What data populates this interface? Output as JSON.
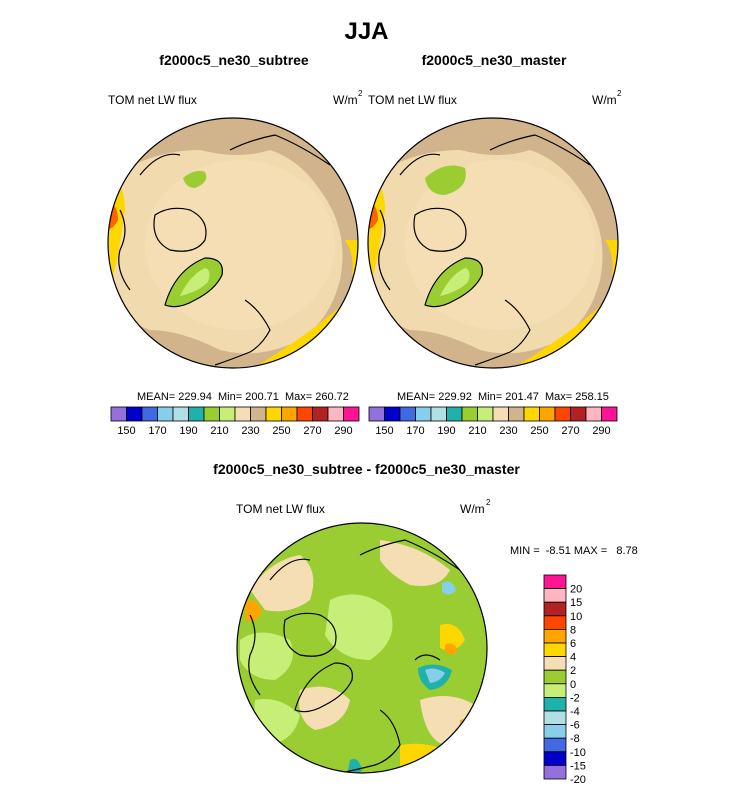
{
  "figure": {
    "season": "JJA",
    "variable": "TOM net LW flux",
    "units_base": "W/m",
    "units_exp": "2"
  },
  "chart_data": [
    {
      "type": "heatmap",
      "projection": "north polar stereographic",
      "title": "f2000c5_ne30_subtree",
      "left_label": "TOM net LW flux",
      "right_label": "W/m2",
      "stats": {
        "mean": 229.94,
        "min": 200.71,
        "max": 260.72
      },
      "stats_text": "MEAN= 229.94  Min= 200.71  Max= 260.72",
      "colorbar": {
        "levels": [
          150,
          160,
          170,
          180,
          190,
          200,
          210,
          220,
          230,
          240,
          250,
          260,
          270,
          280,
          290
        ],
        "labels": [
          "150",
          "170",
          "190",
          "210",
          "230",
          "250",
          "270",
          "290"
        ]
      }
    },
    {
      "type": "heatmap",
      "projection": "north polar stereographic",
      "title": "f2000c5_ne30_master",
      "left_label": "TOM net LW flux",
      "right_label": "W/m2",
      "stats": {
        "mean": 229.92,
        "min": 201.47,
        "max": 258.15
      },
      "stats_text": "MEAN= 229.92  Min= 201.47  Max= 258.15",
      "colorbar": {
        "levels": [
          150,
          160,
          170,
          180,
          190,
          200,
          210,
          220,
          230,
          240,
          250,
          260,
          270,
          280,
          290
        ],
        "labels": [
          "150",
          "170",
          "190",
          "210",
          "230",
          "250",
          "270",
          "290"
        ]
      }
    },
    {
      "type": "heatmap",
      "projection": "north polar stereographic",
      "title": "f2000c5_ne30_subtree - f2000c5_ne30_master",
      "left_label": "TOM net LW flux",
      "right_label": "W/m2",
      "stats": {
        "min": -8.51,
        "max": 8.78
      },
      "stats_text": "MIN =  -8.51 MAX =   8.78",
      "colorbar": {
        "levels": [
          -20,
          -15,
          -10,
          -8,
          -6,
          -4,
          -2,
          0,
          2,
          4,
          6,
          8,
          10,
          15,
          20
        ],
        "labels": [
          "20",
          "15",
          "10",
          "8",
          "6",
          "4",
          "2",
          "0",
          "-2",
          "-4",
          "-6",
          "-8",
          "-10",
          "-15",
          "-20"
        ]
      }
    }
  ],
  "palette": {
    "abs": [
      "#9370db",
      "#0000cd",
      "#4169e1",
      "#87ceeb",
      "#b0e0e6",
      "#20b2aa",
      "#9acd32",
      "#c7ee77",
      "#f5deb3",
      "#d2b48c",
      "#ffd700",
      "#ffa500",
      "#ff4500",
      "#b22222",
      "#ffb6c1",
      "#ff1493"
    ],
    "diff": [
      "#ff1493",
      "#ffb6c1",
      "#b22222",
      "#ff4500",
      "#ffa500",
      "#ffd700",
      "#f5deb3",
      "#9acd32",
      "#c7ee77",
      "#20b2aa",
      "#b0e0e6",
      "#87ceeb",
      "#4169e1",
      "#0000cd",
      "#9370db"
    ]
  }
}
